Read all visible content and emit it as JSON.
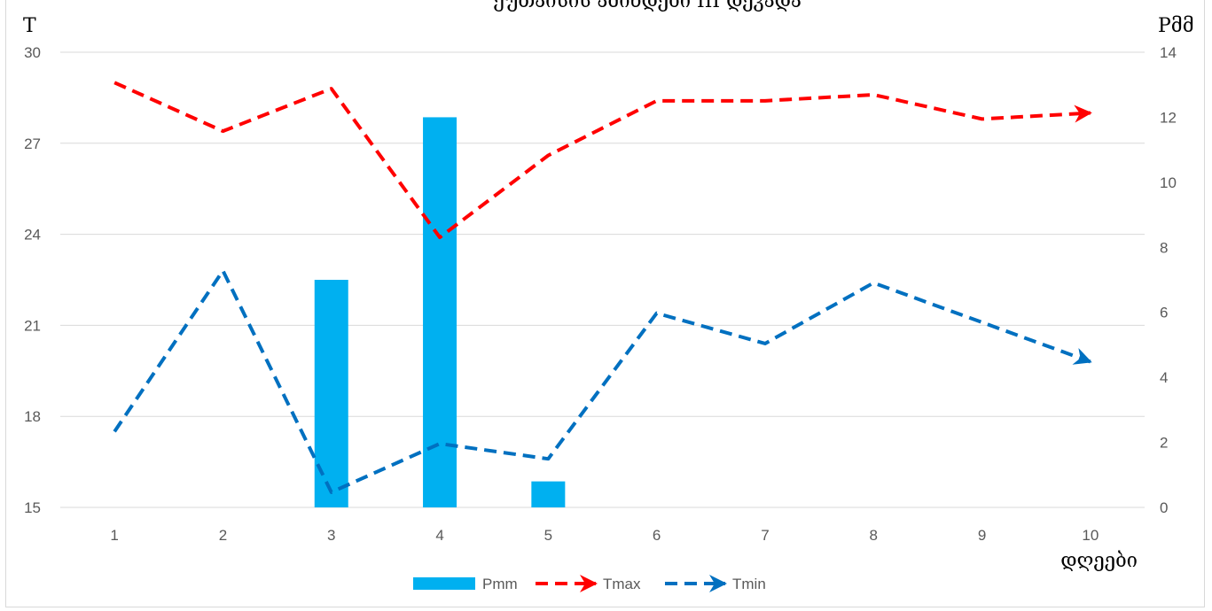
{
  "chart_data": {
    "type": "bar+line",
    "title": "ქუთაისის ამინდები III დეკადა",
    "x_label": "დღეები",
    "y_left_label": "T",
    "y_right_label": "Pმმ",
    "categories": [
      "1",
      "2",
      "3",
      "4",
      "5",
      "6",
      "7",
      "8",
      "9",
      "10"
    ],
    "y_left_lim": [
      15,
      30
    ],
    "y_left_ticks": [
      "15",
      "18",
      "21",
      "24",
      "27",
      "30"
    ],
    "y_right_lim": [
      0,
      14
    ],
    "y_right_ticks": [
      "0",
      "2",
      "4",
      "6",
      "8",
      "10",
      "12",
      "14"
    ],
    "grid": true,
    "legend_position": "bottom",
    "series": [
      {
        "name": "Pmm",
        "type": "bar",
        "axis": "right",
        "color": "#00b0f0",
        "values": [
          0,
          0,
          7,
          12,
          0.8,
          0,
          0,
          0,
          0,
          0
        ]
      },
      {
        "name": "Tmax",
        "type": "line",
        "axis": "left",
        "color": "#ff0000",
        "dash": true,
        "arrow_end": true,
        "values": [
          29.0,
          27.4,
          28.8,
          23.9,
          26.6,
          28.4,
          28.4,
          28.6,
          27.8,
          28.0
        ]
      },
      {
        "name": "Tmin",
        "type": "line",
        "axis": "left",
        "color": "#0070c0",
        "dash": true,
        "arrow_end": true,
        "values": [
          17.5,
          22.8,
          15.5,
          17.1,
          16.6,
          21.4,
          20.4,
          22.4,
          21.1,
          19.8
        ]
      }
    ]
  }
}
